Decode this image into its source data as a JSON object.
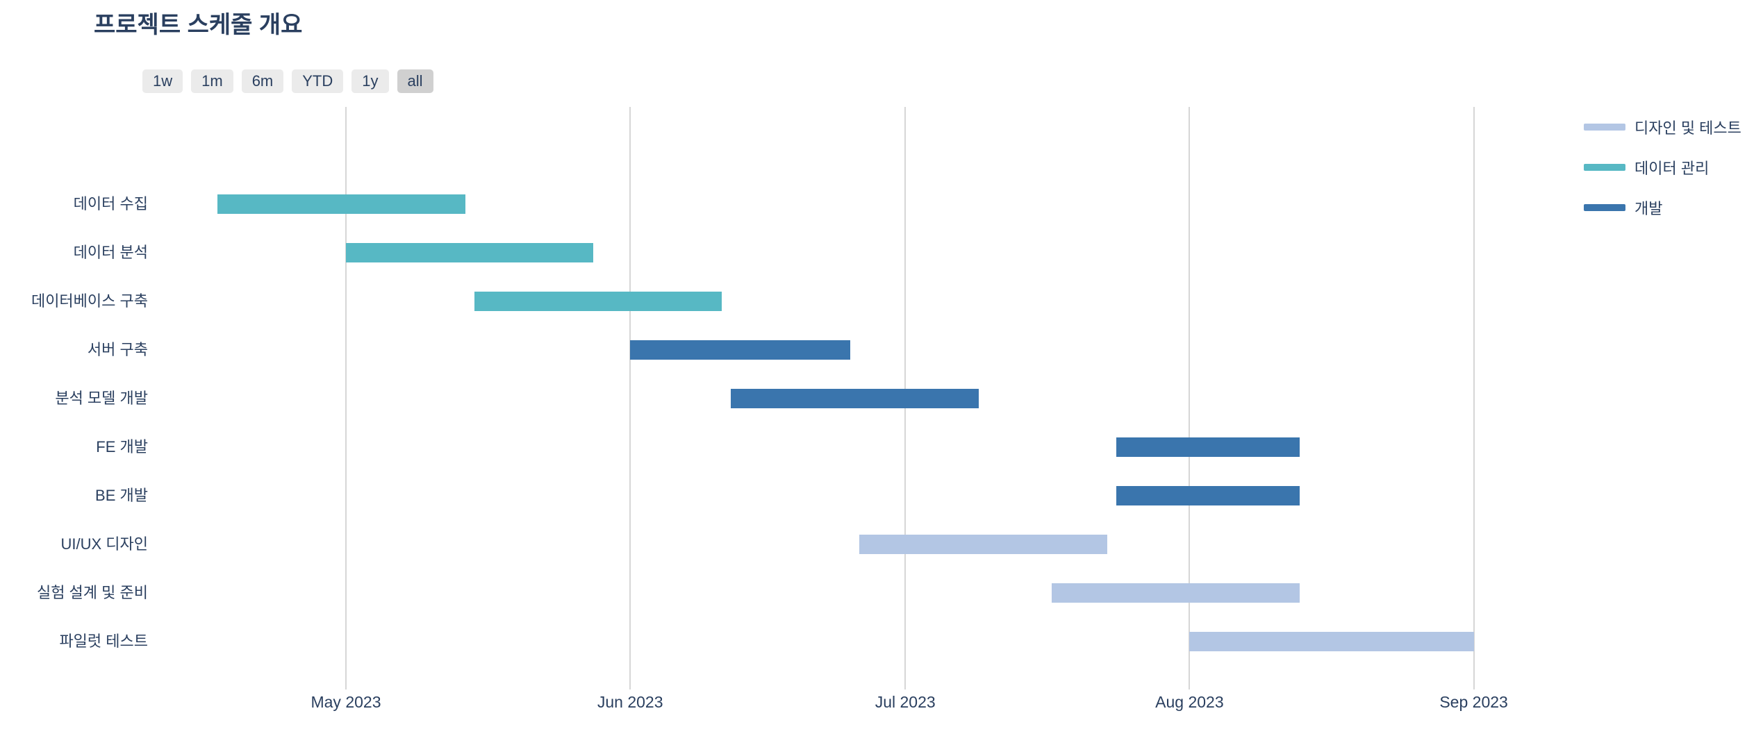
{
  "title": "프로젝트 스케줄 개요",
  "range_selector": {
    "active": "all",
    "buttons": [
      {
        "label": "1w"
      },
      {
        "label": "1m"
      },
      {
        "label": "6m"
      },
      {
        "label": "YTD"
      },
      {
        "label": "1y"
      },
      {
        "label": "all"
      }
    ]
  },
  "chart_data": {
    "type": "gantt",
    "title": "프로젝트 스케줄 개요",
    "x_axis": {
      "ticks": [
        {
          "label": "May 2023",
          "date": "2023-05-01"
        },
        {
          "label": "Jun 2023",
          "date": "2023-06-01"
        },
        {
          "label": "Jul 2023",
          "date": "2023-07-01"
        },
        {
          "label": "Aug 2023",
          "date": "2023-08-01"
        },
        {
          "label": "Sep 2023",
          "date": "2023-09-01"
        }
      ],
      "grid": true
    },
    "tasks": [
      {
        "name": "데이터 수집",
        "start": "2023-04-17",
        "end": "2023-05-14",
        "group": "데이터 관리"
      },
      {
        "name": "데이터 분석",
        "start": "2023-05-01",
        "end": "2023-05-28",
        "group": "데이터 관리"
      },
      {
        "name": "데이터베이스 구축",
        "start": "2023-05-15",
        "end": "2023-06-11",
        "group": "데이터 관리"
      },
      {
        "name": "서버 구축",
        "start": "2023-06-01",
        "end": "2023-06-25",
        "group": "개발"
      },
      {
        "name": "분석 모델 개발",
        "start": "2023-06-12",
        "end": "2023-07-09",
        "group": "개발"
      },
      {
        "name": "FE 개발",
        "start": "2023-07-24",
        "end": "2023-08-13",
        "group": "개발"
      },
      {
        "name": "BE 개발",
        "start": "2023-07-24",
        "end": "2023-08-13",
        "group": "개발"
      },
      {
        "name": "UI/UX 디자인",
        "start": "2023-06-26",
        "end": "2023-07-23",
        "group": "디자인 및 테스트"
      },
      {
        "name": "실험 설계 및 준비",
        "start": "2023-07-17",
        "end": "2023-08-13",
        "group": "디자인 및 테스트"
      },
      {
        "name": "파일럿 테스트",
        "start": "2023-08-01",
        "end": "2023-09-01",
        "group": "디자인 및 테스트"
      }
    ],
    "legend": [
      {
        "label": "디자인 및 테스트",
        "color": "#b3c6e4"
      },
      {
        "label": "데이터 관리",
        "color": "#57b8c4"
      },
      {
        "label": "개발",
        "color": "#3a75ad"
      }
    ],
    "legend_position": "top-right"
  },
  "colors": {
    "text": "#2a3f5f",
    "gridline": "#d6d6d6",
    "background": "#ffffff",
    "button_bg": "#ebebeb",
    "button_active_bg": "#d0d0d0"
  }
}
